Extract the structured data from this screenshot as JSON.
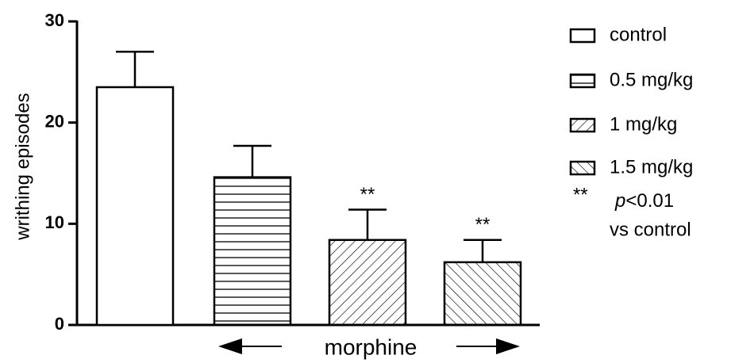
{
  "chart_data": {
    "type": "bar",
    "ylabel": "writhing episodes",
    "xlabel": "morphine",
    "categories": [
      "control",
      "0.5 mg/kg",
      "1 mg/kg",
      "1.5 mg/kg"
    ],
    "values": [
      23.5,
      14.6,
      8.4,
      6.2
    ],
    "errors": [
      3.5,
      3.1,
      3.0,
      2.2
    ],
    "patterns": [
      "none",
      "horizontal",
      "diagonal-down",
      "diagonal-up"
    ],
    "annotations": [
      null,
      null,
      "**",
      "**"
    ],
    "ylim": [
      0,
      30
    ],
    "yticks": [
      0,
      10,
      20,
      30
    ],
    "color": "#000000",
    "note": {
      "marker": "**",
      "symbol": "p",
      "text": "<0.01",
      "line2": "vs control"
    }
  }
}
